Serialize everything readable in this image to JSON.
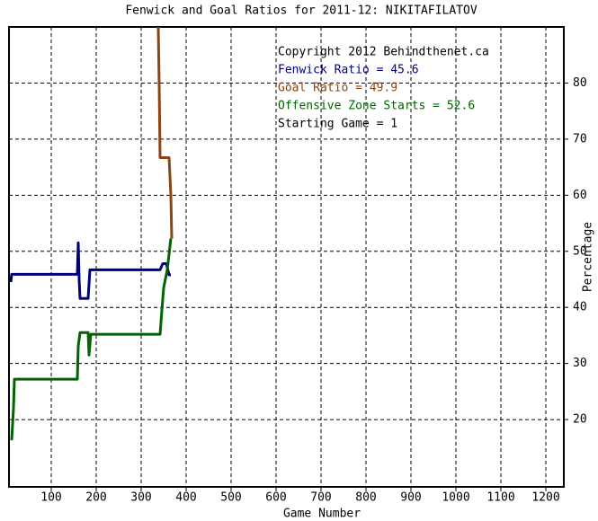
{
  "chart_data": {
    "type": "line",
    "title": "Fenwick and Goal Ratios for 2011-12: NIKITAFILATOV",
    "xlabel": "Game Number",
    "ylabel": "Percentage",
    "annotations": [
      {
        "text": "Copyright 2012 Behindthenet.ca",
        "color": "#000000",
        "row": 0
      },
      {
        "text": "Starting Game = 1",
        "color": "#000000",
        "row": 4
      }
    ],
    "series": [
      {
        "name": "Fenwick Ratio = 45.6",
        "color": "#00007f",
        "x": [
          10,
          12,
          158,
          160,
          162,
          164,
          182,
          186,
          342,
          348,
          356,
          362,
          366
        ],
        "values": [
          44.5,
          45.9,
          45.9,
          51.5,
          45,
          41.6,
          41.6,
          46.7,
          46.7,
          47.8,
          47.8,
          45.8,
          45.8
        ]
      },
      {
        "name": "Goal Ratio = 49.9",
        "color": "#8b4513",
        "x": [
          338,
          340,
          342,
          362,
          366,
          368
        ],
        "values": [
          90,
          80,
          66.7,
          66.7,
          60,
          52.3
        ]
      },
      {
        "name": "Offensive Zone Starts = 52.6",
        "color": "#006400",
        "x": [
          12,
          16,
          18,
          158,
          160,
          164,
          182,
          184,
          188,
          342,
          346,
          350,
          358,
          366
        ],
        "values": [
          16.3,
          22,
          27.2,
          27.2,
          33.1,
          35.5,
          35.5,
          31.5,
          35.2,
          35.2,
          39.5,
          43.5,
          46.7,
          52.3
        ]
      }
    ],
    "xlim": [
      6,
      1240
    ],
    "ylim": [
      8,
      90
    ],
    "xticks": [
      100,
      200,
      300,
      400,
      500,
      600,
      700,
      800,
      900,
      1000,
      1100,
      1200
    ],
    "yticks": [
      20,
      30,
      40,
      50,
      60,
      70,
      80
    ],
    "grid": true
  }
}
